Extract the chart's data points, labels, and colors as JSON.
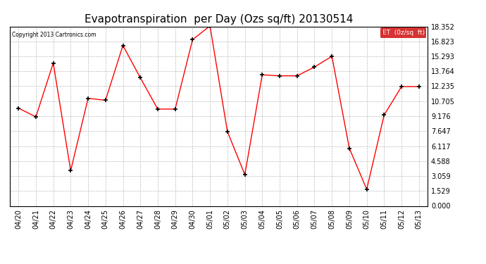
{
  "title": "Evapotranspiration  per Day (Ozs sq/ft) 20130514",
  "copyright": "Copyright 2013 Cartronics.com",
  "legend_label": "ET  (0z/sq  ft)",
  "x_labels": [
    "04/20",
    "04/21",
    "04/22",
    "04/23",
    "04/24",
    "04/25",
    "04/26",
    "04/27",
    "04/28",
    "04/29",
    "04/30",
    "05/01",
    "05/02",
    "05/03",
    "05/04",
    "05/05",
    "05/06",
    "05/07",
    "05/08",
    "05/09",
    "05/10",
    "05/11",
    "05/12",
    "05/13"
  ],
  "y_values": [
    10.0,
    9.1,
    14.6,
    3.6,
    11.0,
    10.8,
    16.4,
    13.1,
    9.9,
    9.9,
    17.0,
    18.4,
    7.6,
    3.2,
    13.4,
    13.3,
    13.3,
    14.2,
    15.3,
    5.9,
    1.7,
    9.3,
    12.2,
    12.2
  ],
  "line_color": "red",
  "marker_color": "black",
  "bg_color": "#ffffff",
  "plot_bg_color": "#ffffff",
  "grid_color": "#bbbbbb",
  "y_ticks": [
    0.0,
    1.529,
    3.059,
    4.588,
    6.117,
    7.647,
    9.176,
    10.705,
    12.235,
    13.764,
    15.293,
    16.823,
    18.352
  ],
  "ylim": [
    0.0,
    18.352
  ],
  "title_fontsize": 11,
  "axis_fontsize": 7,
  "legend_bg": "#cc0000",
  "legend_text_color": "#ffffff"
}
